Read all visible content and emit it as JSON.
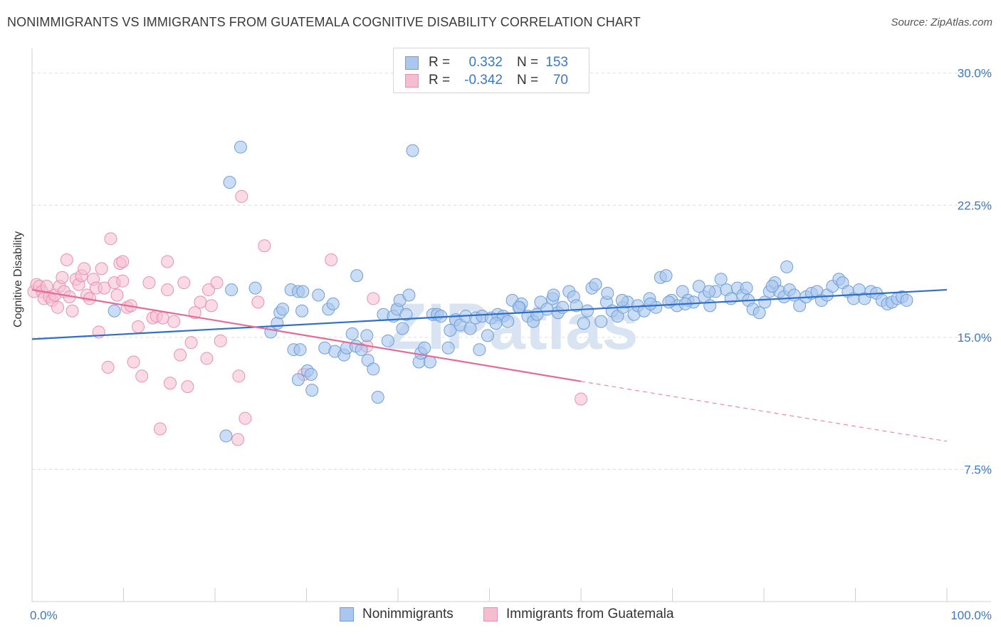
{
  "title": "NONIMMIGRANTS VS IMMIGRANTS FROM GUATEMALA COGNITIVE DISABILITY CORRELATION CHART",
  "source": "Source: ZipAtlas.com",
  "watermark": "ZIPatlas",
  "legend_top": {
    "rows": [
      {
        "r_label": "R =",
        "r_value": "0.332",
        "n_label": "N =",
        "n_value": "153"
      },
      {
        "r_label": "R =",
        "r_value": "-0.342",
        "n_label": "N =",
        "n_value": "70"
      }
    ]
  },
  "legend_bottom": {
    "series1": "Nonimmigrants",
    "series2": "Immigrants from Guatemala"
  },
  "colors": {
    "blue_fill": "#a9c7ef",
    "blue_stroke": "#6f9fd8",
    "blue_line": "#2f6fca",
    "pink_fill": "#f6bdd0",
    "pink_stroke": "#ea8fb0",
    "pink_line": "#e56a96",
    "tick_text": "#3b78c6",
    "grid": "#dcdcdc"
  },
  "chart_data": {
    "type": "scatter",
    "title": "NONIMMIGRANTS VS IMMIGRANTS FROM GUATEMALA COGNITIVE DISABILITY CORRELATION CHART",
    "xlabel": "",
    "ylabel": "Cognitive Disability",
    "xlim": [
      0,
      100
    ],
    "ylim": [
      0,
      31
    ],
    "x_tick_labels": [
      "0.0%",
      "100.0%"
    ],
    "y_ticks": [
      7.5,
      15.0,
      22.5,
      30.0
    ],
    "y_tick_labels": [
      "7.5%",
      "15.0%",
      "22.5%",
      "30.0%"
    ],
    "grid": true,
    "legend": "top-center",
    "series": [
      {
        "name": "Nonimmigrants",
        "color": "#a9c7ef",
        "trend": {
          "x": [
            0,
            100
          ],
          "y": [
            14.9,
            17.7
          ],
          "style": "solid"
        },
        "points": [
          [
            9,
            16.5
          ],
          [
            21.6,
            23.8
          ],
          [
            22.8,
            25.8
          ],
          [
            21.8,
            17.7
          ],
          [
            24.4,
            17.8
          ],
          [
            26.1,
            15.3
          ],
          [
            26.8,
            15.8
          ],
          [
            27.1,
            16.4
          ],
          [
            27.4,
            16.6
          ],
          [
            28.3,
            17.7
          ],
          [
            28.6,
            14.3
          ],
          [
            29.1,
            17.6
          ],
          [
            29.3,
            14.3
          ],
          [
            29.5,
            16.5
          ],
          [
            29.6,
            17.6
          ],
          [
            21.2,
            9.4
          ],
          [
            30.1,
            13.1
          ],
          [
            30.5,
            12.9
          ],
          [
            30.6,
            12.0
          ],
          [
            31.3,
            17.4
          ],
          [
            29.1,
            12.6
          ],
          [
            32.0,
            14.4
          ],
          [
            32.4,
            16.6
          ],
          [
            32.9,
            16.9
          ],
          [
            33.1,
            14.2
          ],
          [
            34.1,
            14.0
          ],
          [
            34.4,
            14.4
          ],
          [
            35,
            15.2
          ],
          [
            35.4,
            14.5
          ],
          [
            35.5,
            18.5
          ],
          [
            36.0,
            14.3
          ],
          [
            36.7,
            13.7
          ],
          [
            36.6,
            15.1
          ],
          [
            37.3,
            13.2
          ],
          [
            37.8,
            11.6
          ],
          [
            38.4,
            16.3
          ],
          [
            38.9,
            14.8
          ],
          [
            39.5,
            16.2
          ],
          [
            39.9,
            16.6
          ],
          [
            40.2,
            17.1
          ],
          [
            40.5,
            15.5
          ],
          [
            40.9,
            16.3
          ],
          [
            41.2,
            17.4
          ],
          [
            41.6,
            25.6
          ],
          [
            42.3,
            13.6
          ],
          [
            42.5,
            14.1
          ],
          [
            42.9,
            14.4
          ],
          [
            43.5,
            13.6
          ],
          [
            43.8,
            16.3
          ],
          [
            44.3,
            16.3
          ],
          [
            44.7,
            16.2
          ],
          [
            45.5,
            14.4
          ],
          [
            45.7,
            15.4
          ],
          [
            46.3,
            16.0
          ],
          [
            46.8,
            15.7
          ],
          [
            47.4,
            16.2
          ],
          [
            47.9,
            15.5
          ],
          [
            48.5,
            16.1
          ],
          [
            48.9,
            14.3
          ],
          [
            49.2,
            16.2
          ],
          [
            49.8,
            15.1
          ],
          [
            50.2,
            16.1
          ],
          [
            50.9,
            16.3
          ],
          [
            51.5,
            16.2
          ],
          [
            52.0,
            15.9
          ],
          [
            52.5,
            17.1
          ],
          [
            53.3,
            16.7
          ],
          [
            53.5,
            16.9
          ],
          [
            54.2,
            16.2
          ],
          [
            54.8,
            15.9
          ],
          [
            55.2,
            16.3
          ],
          [
            55.6,
            17.0
          ],
          [
            56.3,
            16.6
          ],
          [
            56.9,
            17.2
          ],
          [
            57.5,
            16.4
          ],
          [
            58.0,
            16.7
          ],
          [
            58.7,
            17.6
          ],
          [
            59.2,
            17.3
          ],
          [
            59.5,
            16.8
          ],
          [
            60.3,
            15.8
          ],
          [
            60.7,
            16.5
          ],
          [
            61.2,
            17.8
          ],
          [
            61.6,
            18.0
          ],
          [
            62.2,
            15.9
          ],
          [
            62.8,
            17.0
          ],
          [
            63.4,
            16.5
          ],
          [
            64.0,
            16.2
          ],
          [
            64.6,
            16.7
          ],
          [
            65.1,
            17.0
          ],
          [
            65.8,
            16.3
          ],
          [
            66.2,
            16.8
          ],
          [
            66.9,
            16.5
          ],
          [
            67.5,
            17.2
          ],
          [
            68.2,
            16.7
          ],
          [
            68.7,
            18.4
          ],
          [
            69.3,
            18.5
          ],
          [
            69.9,
            17.1
          ],
          [
            70.5,
            16.8
          ],
          [
            71.1,
            17.6
          ],
          [
            71.7,
            17.1
          ],
          [
            72.3,
            17.0
          ],
          [
            72.9,
            17.9
          ],
          [
            73.5,
            17.3
          ],
          [
            74.1,
            16.8
          ],
          [
            74.7,
            17.6
          ],
          [
            75.3,
            18.3
          ],
          [
            75.9,
            17.7
          ],
          [
            76.4,
            17.2
          ],
          [
            77.1,
            17.8
          ],
          [
            77.7,
            17.4
          ],
          [
            78.3,
            17.1
          ],
          [
            78.8,
            16.6
          ],
          [
            79.5,
            16.4
          ],
          [
            80.1,
            17.0
          ],
          [
            80.6,
            17.6
          ],
          [
            81.2,
            18.1
          ],
          [
            81.7,
            17.6
          ],
          [
            82.2,
            17.3
          ],
          [
            82.8,
            17.7
          ],
          [
            83.3,
            17.4
          ],
          [
            83.9,
            16.8
          ],
          [
            84.6,
            17.3
          ],
          [
            85.2,
            17.5
          ],
          [
            85.8,
            17.6
          ],
          [
            86.3,
            17.1
          ],
          [
            86.9,
            17.4
          ],
          [
            87.5,
            17.9
          ],
          [
            88.2,
            18.3
          ],
          [
            88.6,
            18.1
          ],
          [
            89.2,
            17.6
          ],
          [
            89.8,
            17.2
          ],
          [
            90.4,
            17.7
          ],
          [
            91.0,
            17.2
          ],
          [
            91.7,
            17.6
          ],
          [
            92.3,
            17.5
          ],
          [
            92.9,
            17.1
          ],
          [
            93.5,
            16.9
          ],
          [
            94.0,
            17.0
          ],
          [
            94.6,
            17.2
          ],
          [
            95.1,
            17.3
          ],
          [
            95.6,
            17.1
          ],
          [
            82.5,
            19.0
          ],
          [
            80.9,
            17.9
          ],
          [
            78.1,
            17.8
          ],
          [
            74.0,
            17.6
          ],
          [
            71.4,
            16.9
          ],
          [
            69.6,
            17.0
          ],
          [
            67.6,
            16.9
          ],
          [
            64.5,
            17.1
          ],
          [
            62.9,
            17.5
          ],
          [
            57.0,
            17.4
          ],
          [
            53.2,
            16.7
          ],
          [
            50.7,
            15.8
          ]
        ]
      },
      {
        "name": "Immigrants from Guatemala",
        "color": "#f6bdd0",
        "trend": {
          "x": [
            0,
            60
          ],
          "y": [
            17.7,
            12.5
          ],
          "style": "solid",
          "extended": {
            "x": [
              60,
              100
            ],
            "y": [
              12.5,
              9.1
            ],
            "style": "dashed"
          }
        },
        "points": [
          [
            0.2,
            17.6
          ],
          [
            0.5,
            18.0
          ],
          [
            0.8,
            17.9
          ],
          [
            1.1,
            17.6
          ],
          [
            1.3,
            17.2
          ],
          [
            1.6,
            17.9
          ],
          [
            1.9,
            17.3
          ],
          [
            2.2,
            17.1
          ],
          [
            2.5,
            17.4
          ],
          [
            2.8,
            16.7
          ],
          [
            3.0,
            17.9
          ],
          [
            3.3,
            18.4
          ],
          [
            3.5,
            17.6
          ],
          [
            3.8,
            19.4
          ],
          [
            4.1,
            17.3
          ],
          [
            4.4,
            16.5
          ],
          [
            4.8,
            18.3
          ],
          [
            5.1,
            18.0
          ],
          [
            5.4,
            18.5
          ],
          [
            5.7,
            18.9
          ],
          [
            6.0,
            17.4
          ],
          [
            6.3,
            17.2
          ],
          [
            6.7,
            18.3
          ],
          [
            7.0,
            17.8
          ],
          [
            7.3,
            15.3
          ],
          [
            7.6,
            18.9
          ],
          [
            7.9,
            17.8
          ],
          [
            8.3,
            13.3
          ],
          [
            8.6,
            20.6
          ],
          [
            9.0,
            18.1
          ],
          [
            9.3,
            17.4
          ],
          [
            9.6,
            19.2
          ],
          [
            9.9,
            18.2
          ],
          [
            10.4,
            16.7
          ],
          [
            10.8,
            16.8
          ],
          [
            11.1,
            13.6
          ],
          [
            11.6,
            15.6
          ],
          [
            12.0,
            12.8
          ],
          [
            12.8,
            18.1
          ],
          [
            13.2,
            16.1
          ],
          [
            13.6,
            16.2
          ],
          [
            14.0,
            9.8
          ],
          [
            14.3,
            16.1
          ],
          [
            14.8,
            17.7
          ],
          [
            15.1,
            12.4
          ],
          [
            15.5,
            15.9
          ],
          [
            16.2,
            14.0
          ],
          [
            16.6,
            18.1
          ],
          [
            17.0,
            12.2
          ],
          [
            17.4,
            14.7
          ],
          [
            17.8,
            16.4
          ],
          [
            18.4,
            17.0
          ],
          [
            19.1,
            13.8
          ],
          [
            19.3,
            17.7
          ],
          [
            19.6,
            16.8
          ],
          [
            20.2,
            18.1
          ],
          [
            20.6,
            14.8
          ],
          [
            14.8,
            19.3
          ],
          [
            9.9,
            19.3
          ],
          [
            22.9,
            23.0
          ],
          [
            23.3,
            10.4
          ],
          [
            22.5,
            9.2
          ],
          [
            22.6,
            12.8
          ],
          [
            24.7,
            17.0
          ],
          [
            25.4,
            20.2
          ],
          [
            29.7,
            12.9
          ],
          [
            32.7,
            19.4
          ],
          [
            36.6,
            14.5
          ],
          [
            37.3,
            17.2
          ],
          [
            60.0,
            11.5
          ]
        ]
      }
    ]
  }
}
